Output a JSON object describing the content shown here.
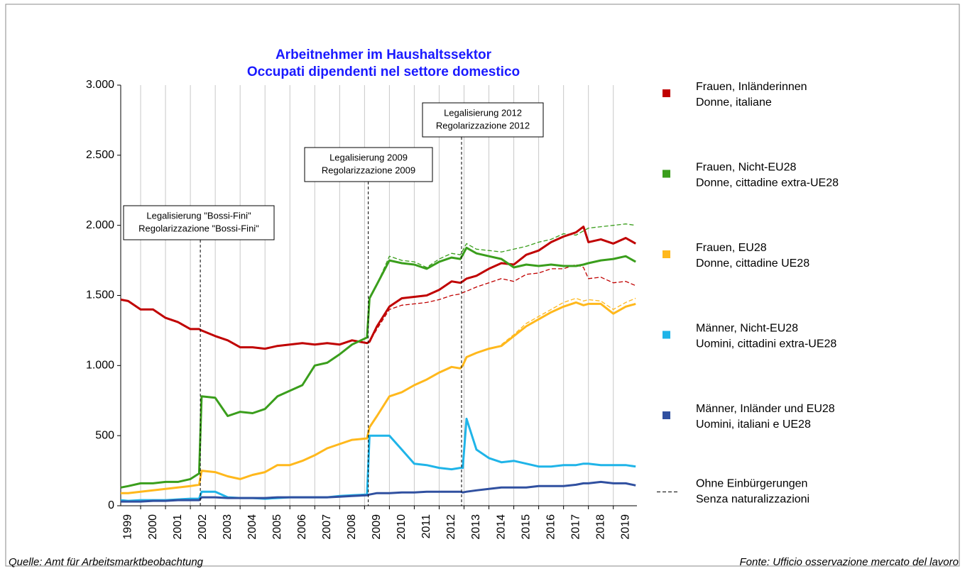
{
  "chart_data": {
    "type": "line",
    "title": [
      "Arbeitnehmer im Haushaltssektor",
      "Occupati dipendenti nel settore domestico"
    ],
    "x": [
      1999.2,
      1999.5,
      2000,
      2000.5,
      2001,
      2001.5,
      2002,
      2002.35,
      2002.45,
      2003,
      2003.5,
      2004,
      2004.5,
      2005,
      2005.5,
      2006,
      2006.5,
      2007,
      2007.5,
      2008,
      2008.5,
      2009.1,
      2009.2,
      2009.5,
      2010,
      2010.5,
      2011,
      2011.5,
      2012,
      2012.5,
      2012.85,
      2012.95,
      2013.1,
      2013.5,
      2014,
      2014.5,
      2015,
      2015.5,
      2016,
      2016.5,
      2017,
      2017.5,
      2017.8,
      2018,
      2018.5,
      2019,
      2019.5,
      2019.9
    ],
    "xlim": [
      1999.2,
      2019.95
    ],
    "xticks": [
      {
        "value": 1999.5,
        "label": "1999"
      },
      {
        "value": 2000.5,
        "label": "2000"
      },
      {
        "value": 2001.5,
        "label": "2001"
      },
      {
        "value": 2002.5,
        "label": "2002"
      },
      {
        "value": 2003.5,
        "label": "2003"
      },
      {
        "value": 2004.5,
        "label": "2004"
      },
      {
        "value": 2005.5,
        "label": "2005"
      },
      {
        "value": 2006.5,
        "label": "2006"
      },
      {
        "value": 2007.5,
        "label": "2007"
      },
      {
        "value": 2008.5,
        "label": "2008"
      },
      {
        "value": 2009.5,
        "label": "2009"
      },
      {
        "value": 2010.5,
        "label": "2010"
      },
      {
        "value": 2011.5,
        "label": "2011"
      },
      {
        "value": 2012.5,
        "label": "2012"
      },
      {
        "value": 2013.5,
        "label": "2013"
      },
      {
        "value": 2014.5,
        "label": "2014"
      },
      {
        "value": 2015.5,
        "label": "2015"
      },
      {
        "value": 2016.5,
        "label": "2016"
      },
      {
        "value": 2017.5,
        "label": "2017"
      },
      {
        "value": 2018.5,
        "label": "2018"
      },
      {
        "value": 2019.5,
        "label": "2019"
      }
    ],
    "ylim": [
      0,
      3000
    ],
    "yticks": [
      0,
      500,
      {
        "value": 1000,
        "label": "1.000"
      },
      {
        "value": 1500,
        "label": "1.500"
      },
      {
        "value": 2000,
        "label": "2.000"
      },
      {
        "value": 2500,
        "label": "2.500"
      },
      {
        "value": 3000,
        "label": "3.000"
      }
    ],
    "series": [
      {
        "name": [
          "Frauen, Inländerinnen",
          "Donne, italiane"
        ],
        "color": "#c00000",
        "values": [
          1470,
          1460,
          1400,
          1400,
          1340,
          1310,
          1260,
          1260,
          1250,
          1210,
          1180,
          1130,
          1130,
          1120,
          1140,
          1150,
          1160,
          1150,
          1160,
          1150,
          1180,
          1160,
          1170,
          1280,
          1420,
          1480,
          1490,
          1500,
          1540,
          1600,
          1590,
          1600,
          1620,
          1640,
          1690,
          1730,
          1720,
          1790,
          1820,
          1880,
          1920,
          1950,
          1990,
          1880,
          1900,
          1870,
          1910,
          1870
        ]
      },
      {
        "name": [
          "Frauen, Nicht-EU28",
          "Donne, cittadine extra-UE28"
        ],
        "color": "#3a9e1c",
        "values": [
          130,
          140,
          160,
          160,
          170,
          170,
          190,
          230,
          780,
          770,
          640,
          670,
          660,
          690,
          780,
          820,
          860,
          1000,
          1020,
          1080,
          1150,
          1200,
          1480,
          1580,
          1750,
          1730,
          1720,
          1690,
          1740,
          1770,
          1760,
          1790,
          1840,
          1800,
          1780,
          1760,
          1700,
          1720,
          1710,
          1720,
          1710,
          1710,
          1720,
          1730,
          1750,
          1760,
          1780,
          1740
        ]
      },
      {
        "name": [
          "Frauen, EU28",
          "Donne, cittadine UE28"
        ],
        "color": "#ffb81c",
        "values": [
          90,
          90,
          100,
          110,
          120,
          130,
          140,
          150,
          250,
          240,
          210,
          190,
          220,
          240,
          290,
          290,
          320,
          360,
          410,
          440,
          470,
          480,
          560,
          640,
          780,
          810,
          860,
          900,
          950,
          990,
          980,
          1000,
          1060,
          1090,
          1120,
          1140,
          1210,
          1280,
          1330,
          1380,
          1420,
          1450,
          1430,
          1440,
          1440,
          1370,
          1420,
          1440
        ]
      },
      {
        "name": [
          "Männer, Nicht-EU28",
          "Uomini, cittadini extra-UE28"
        ],
        "color": "#1fb4e8",
        "values": [
          40,
          35,
          40,
          40,
          40,
          45,
          50,
          50,
          100,
          100,
          60,
          55,
          55,
          50,
          55,
          60,
          60,
          60,
          60,
          70,
          75,
          80,
          500,
          500,
          500,
          400,
          300,
          290,
          270,
          260,
          270,
          270,
          620,
          400,
          340,
          310,
          320,
          300,
          280,
          280,
          290,
          290,
          300,
          300,
          290,
          290,
          290,
          280
        ]
      },
      {
        "name": [
          "Männer, Inländer und EU28",
          "Uomini, italiani e UE28"
        ],
        "color": "#3050a0",
        "values": [
          30,
          30,
          30,
          35,
          35,
          40,
          40,
          40,
          60,
          60,
          55,
          55,
          55,
          55,
          60,
          60,
          60,
          60,
          60,
          65,
          70,
          75,
          80,
          90,
          90,
          95,
          95,
          100,
          100,
          100,
          100,
          95,
          100,
          110,
          120,
          130,
          130,
          130,
          140,
          140,
          140,
          150,
          160,
          160,
          170,
          160,
          160,
          145
        ]
      }
    ],
    "dashed_series": [
      {
        "color": "#c00000",
        "values": [
          null,
          null,
          null,
          null,
          null,
          null,
          null,
          null,
          null,
          null,
          null,
          null,
          null,
          null,
          null,
          null,
          null,
          null,
          null,
          null,
          null,
          1160,
          1170,
          1260,
          1400,
          1430,
          1440,
          1450,
          1470,
          1500,
          1510,
          1520,
          1530,
          1560,
          1590,
          1620,
          1600,
          1650,
          1660,
          1690,
          1690,
          1720,
          1700,
          1620,
          1630,
          1590,
          1600,
          1570
        ]
      },
      {
        "color": "#3a9e1c",
        "values": [
          null,
          null,
          null,
          null,
          null,
          null,
          null,
          null,
          null,
          null,
          null,
          null,
          null,
          null,
          null,
          null,
          null,
          null,
          null,
          null,
          null,
          1200,
          1480,
          1580,
          1780,
          1750,
          1740,
          1700,
          1760,
          1800,
          1790,
          1820,
          1870,
          1830,
          1820,
          1810,
          1830,
          1850,
          1880,
          1900,
          1940,
          1930,
          1960,
          1980,
          1990,
          2000,
          2010,
          2000
        ]
      },
      {
        "color": "#ffb81c",
        "values": [
          null,
          null,
          null,
          null,
          null,
          null,
          null,
          null,
          null,
          null,
          null,
          null,
          null,
          null,
          null,
          null,
          null,
          null,
          null,
          null,
          null,
          null,
          null,
          null,
          null,
          null,
          null,
          null,
          null,
          null,
          null,
          null,
          null,
          null,
          null,
          1150,
          1220,
          1300,
          1350,
          1400,
          1450,
          1480,
          1460,
          1470,
          1460,
          1400,
          1450,
          1480
        ]
      }
    ],
    "dashed_legend": [
      "Ohne Einbürgerungen",
      "Senza naturalizzazioni"
    ],
    "annotations": [
      {
        "x": 2002.4,
        "text": [
          "Legalisierung \"Bossi-Fini\"",
          "Regolarizzazione \"Bossi-Fini\""
        ]
      },
      {
        "x": 2009.15,
        "text": [
          "Legalisierung 2009",
          "Regolarizzazione 2009"
        ]
      },
      {
        "x": 2012.9,
        "text": [
          "Legalisierung 2012",
          "Regolarizzazione 2012"
        ]
      }
    ],
    "source_left": "Quelle: Amt für Arbeitsmarktbeobachtung",
    "source_right": "Fonte: Ufficio osservazione mercato del lavoro"
  }
}
